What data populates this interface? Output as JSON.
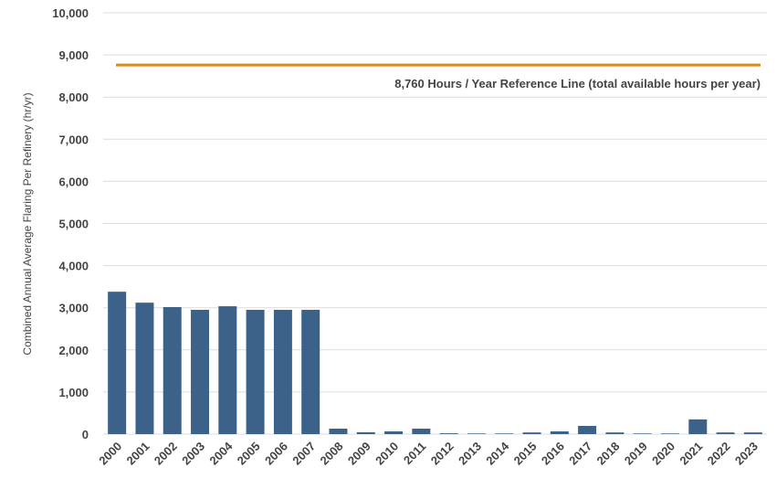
{
  "chart_data": {
    "type": "bar",
    "y_label": "Combined Annual Average Flaring Per Refinery (hr/yr)",
    "categories": [
      "2000",
      "2001",
      "2002",
      "2003",
      "2004",
      "2005",
      "2006",
      "2007",
      "2008",
      "2009",
      "2010",
      "2011",
      "2012",
      "2013",
      "2014",
      "2015",
      "2016",
      "2017",
      "2018",
      "2019",
      "2020",
      "2021",
      "2022",
      "2023"
    ],
    "values": [
      3380,
      3120,
      3015,
      2950,
      3035,
      2950,
      2950,
      2950,
      130,
      45,
      65,
      130,
      20,
      15,
      15,
      40,
      65,
      195,
      40,
      15,
      15,
      350,
      40,
      40
    ],
    "color": "#3d6289",
    "ylim": [
      0,
      10000
    ],
    "yticks": [
      0,
      {
        "value": 1000,
        "label": "1,000"
      },
      {
        "value": 2000,
        "label": "2,000"
      },
      {
        "value": 3000,
        "label": "3,000"
      },
      {
        "value": 4000,
        "label": "4,000"
      },
      {
        "value": 5000,
        "label": "5,000"
      },
      {
        "value": 6000,
        "label": "6,000"
      },
      {
        "value": 7000,
        "label": "7,000"
      },
      {
        "value": 8000,
        "label": "8,000"
      },
      {
        "value": 9000,
        "label": "9,000"
      },
      {
        "value": 10000,
        "label": "10,000"
      }
    ],
    "grid": true,
    "reference_line": {
      "value": 8760,
      "label": "8,760 Hours / Year Reference Line (total available hours per year)",
      "color": "#d68b1f"
    }
  }
}
